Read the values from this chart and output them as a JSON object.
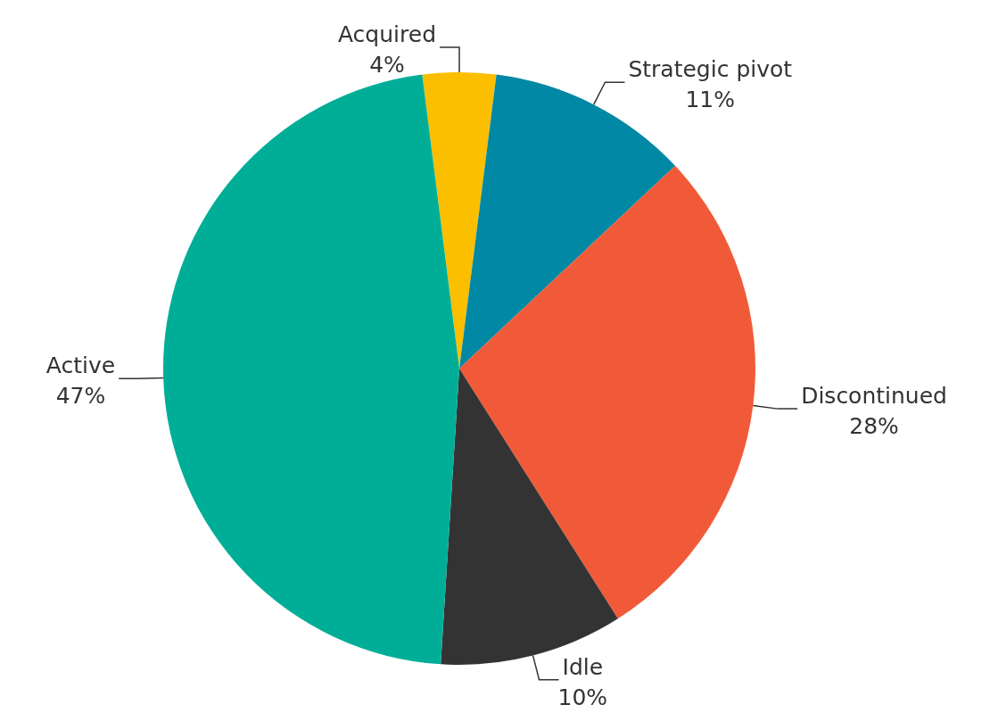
{
  "chart_data": {
    "type": "pie",
    "categories": [
      "Acquired",
      "Strategic pivot",
      "Discontinued",
      "Idle",
      "Active"
    ],
    "values": [
      4,
      11,
      28,
      10,
      47
    ],
    "value_labels": [
      "4%",
      "11%",
      "28%",
      "10%",
      "47%"
    ],
    "colors": [
      "#fbbf00",
      "#0088a4",
      "#f15a38",
      "#333333",
      "#00ae98"
    ]
  }
}
